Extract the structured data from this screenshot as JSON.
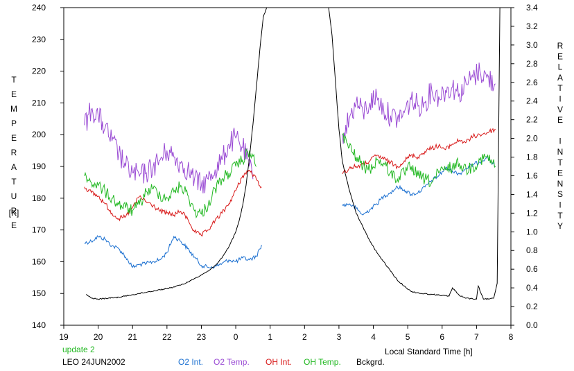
{
  "chart_data": {
    "type": "line",
    "xlabel": "Local Standard Time [h]",
    "ylabel_left": "TEMPERATURE",
    "ylabel_left_unit": "[K]",
    "ylabel_right": "RELATIVE INTENSITY",
    "x_ticks": [
      "19",
      "20",
      "21",
      "22",
      "23",
      "0",
      "1",
      "2",
      "3",
      "4",
      "5",
      "6",
      "7",
      "8"
    ],
    "xlim": [
      19,
      32
    ],
    "ylim_left": [
      140,
      240
    ],
    "ylim_right": [
      0.0,
      3.4
    ],
    "y_ticks_left": [
      "140",
      "150",
      "160",
      "170",
      "180",
      "190",
      "200",
      "210",
      "220",
      "230",
      "240"
    ],
    "y_ticks_right": [
      "0.0",
      "0.2",
      "0.4",
      "0.6",
      "0.8",
      "1.0",
      "1.2",
      "1.4",
      "1.6",
      "1.8",
      "2.0",
      "2.2",
      "2.4",
      "2.6",
      "2.8",
      "3.0",
      "3.2",
      "3.4"
    ],
    "update_note": "update 2",
    "station_label": "LEO 24JUN2002",
    "grid": false,
    "series": [
      {
        "name": "O2 Int.",
        "color": "#1a6fd0",
        "axis": "right",
        "x": [
          19.6,
          19.8,
          20.0,
          20.2,
          20.4,
          20.6,
          20.8,
          21.0,
          21.2,
          21.4,
          21.6,
          21.8,
          22.0,
          22.2,
          22.4,
          22.6,
          22.8,
          23.0,
          23.2,
          23.4,
          23.6,
          23.8,
          24.0,
          24.2,
          24.4,
          24.6,
          24.75,
          27.1,
          27.3,
          27.5,
          27.7,
          27.9,
          28.1,
          28.3,
          28.5,
          28.7,
          28.9,
          29.1,
          29.3,
          29.5,
          29.7,
          29.9,
          30.1,
          30.3,
          30.5,
          30.7,
          30.9,
          31.1,
          31.3,
          31.55
        ],
        "values": [
          0.88,
          0.9,
          0.95,
          0.92,
          0.85,
          0.82,
          0.73,
          0.62,
          0.65,
          0.66,
          0.68,
          0.7,
          0.78,
          0.95,
          0.9,
          0.82,
          0.73,
          0.64,
          0.62,
          0.63,
          0.66,
          0.7,
          0.68,
          0.72,
          0.7,
          0.74,
          0.86,
          1.28,
          1.3,
          1.25,
          1.18,
          1.24,
          1.3,
          1.38,
          1.42,
          1.48,
          1.45,
          1.4,
          1.42,
          1.48,
          1.55,
          1.6,
          1.68,
          1.65,
          1.62,
          1.68,
          1.72,
          1.75,
          1.8,
          1.7
        ]
      },
      {
        "name": "O2 Temp.",
        "color": "#9a4bd4",
        "axis": "left",
        "x": [
          19.6,
          19.8,
          20.0,
          20.2,
          20.4,
          20.6,
          20.8,
          21.0,
          21.2,
          21.4,
          21.6,
          21.8,
          22.0,
          22.2,
          22.4,
          22.6,
          22.8,
          23.0,
          23.2,
          23.4,
          23.6,
          23.8,
          24.0,
          24.2,
          24.4,
          24.5,
          27.1,
          27.3,
          27.5,
          27.7,
          27.9,
          28.1,
          28.3,
          28.5,
          28.7,
          28.9,
          29.1,
          29.3,
          29.5,
          29.7,
          29.9,
          30.1,
          30.3,
          30.5,
          30.7,
          30.9,
          31.1,
          31.3,
          31.55
        ],
        "values": [
          203,
          208,
          206,
          202,
          198,
          194,
          190,
          188,
          187,
          188,
          190,
          192,
          195,
          193,
          191,
          189,
          186,
          184,
          186,
          189,
          192,
          197,
          199,
          196,
          190,
          186,
          200,
          205,
          210,
          207,
          210,
          212,
          208,
          206,
          205,
          207,
          211,
          209,
          210,
          214,
          212,
          214,
          215,
          213,
          216,
          218,
          220,
          218,
          216
        ]
      },
      {
        "name": "OH Int.",
        "color": "#d81818",
        "axis": "right",
        "x": [
          19.6,
          19.8,
          20.0,
          20.2,
          20.4,
          20.6,
          20.8,
          21.0,
          21.2,
          21.4,
          21.6,
          21.8,
          22.0,
          22.2,
          22.4,
          22.6,
          22.8,
          23.0,
          23.2,
          23.4,
          23.6,
          23.8,
          24.0,
          24.2,
          24.4,
          24.6,
          24.75,
          27.1,
          27.3,
          27.5,
          27.7,
          27.9,
          28.1,
          28.3,
          28.5,
          28.7,
          28.9,
          29.1,
          29.3,
          29.5,
          29.7,
          29.9,
          30.1,
          30.3,
          30.5,
          30.7,
          30.9,
          31.1,
          31.3,
          31.55
        ],
        "values": [
          1.48,
          1.42,
          1.38,
          1.3,
          1.2,
          1.14,
          1.16,
          1.26,
          1.38,
          1.32,
          1.28,
          1.22,
          1.2,
          1.18,
          1.22,
          1.14,
          1.0,
          0.96,
          1.02,
          1.12,
          1.2,
          1.3,
          1.44,
          1.6,
          1.66,
          1.56,
          1.48,
          1.62,
          1.68,
          1.7,
          1.72,
          1.76,
          1.82,
          1.78,
          1.74,
          1.7,
          1.76,
          1.82,
          1.8,
          1.86,
          1.9,
          1.92,
          1.88,
          1.94,
          1.98,
          1.96,
          2.02,
          2.04,
          2.06,
          2.1
        ]
      },
      {
        "name": "OH Temp.",
        "color": "#22b822",
        "axis": "left",
        "x": [
          19.6,
          19.8,
          20.0,
          20.2,
          20.4,
          20.6,
          20.8,
          21.0,
          21.2,
          21.4,
          21.6,
          21.8,
          22.0,
          22.2,
          22.4,
          22.6,
          22.8,
          23.0,
          23.2,
          23.4,
          23.6,
          23.8,
          24.0,
          24.2,
          24.4,
          24.6,
          27.1,
          27.3,
          27.5,
          27.7,
          27.9,
          28.1,
          28.3,
          28.5,
          28.7,
          28.9,
          29.1,
          29.3,
          29.5,
          29.7,
          29.9,
          30.1,
          30.3,
          30.5,
          30.7,
          30.9,
          31.1,
          31.3,
          31.55
        ],
        "values": [
          187,
          185,
          184,
          182,
          180,
          178,
          177,
          176,
          178,
          182,
          183,
          181,
          180,
          182,
          184,
          181,
          176,
          175,
          178,
          183,
          186,
          188,
          190,
          192,
          195,
          190,
          200,
          196,
          193,
          190,
          189,
          192,
          191,
          188,
          186,
          188,
          190,
          187,
          186,
          185,
          188,
          189,
          190,
          191,
          189,
          190,
          192,
          193,
          190
        ]
      },
      {
        "name": "Bckgrd.",
        "color": "#000000",
        "axis": "right",
        "x": [
          19.65,
          19.8,
          20.0,
          20.3,
          20.6,
          20.9,
          21.2,
          21.5,
          21.8,
          22.1,
          22.4,
          22.6,
          22.8,
          23.0,
          23.2,
          23.4,
          23.6,
          23.8,
          24.0,
          24.1,
          24.2,
          24.3,
          24.4,
          24.5,
          24.6,
          24.7,
          24.8,
          24.9,
          26.7,
          26.8,
          26.9,
          27.0,
          27.1,
          27.3,
          27.5,
          27.7,
          27.9,
          28.1,
          28.3,
          28.5,
          28.7,
          28.9,
          29.1,
          29.4,
          29.7,
          30.0,
          30.2,
          30.3,
          30.5,
          30.7,
          30.9,
          31.0,
          31.05,
          31.2,
          31.35,
          31.5,
          31.6,
          31.68
        ],
        "values": [
          0.33,
          0.29,
          0.28,
          0.29,
          0.3,
          0.32,
          0.34,
          0.36,
          0.38,
          0.4,
          0.43,
          0.46,
          0.5,
          0.54,
          0.58,
          0.64,
          0.72,
          0.84,
          1.0,
          1.12,
          1.28,
          1.5,
          1.8,
          2.15,
          2.55,
          2.95,
          3.3,
          3.4,
          3.4,
          3.1,
          2.6,
          2.1,
          1.75,
          1.45,
          1.2,
          1.05,
          0.9,
          0.78,
          0.68,
          0.58,
          0.48,
          0.42,
          0.36,
          0.34,
          0.33,
          0.32,
          0.31,
          0.4,
          0.32,
          0.29,
          0.28,
          0.28,
          0.42,
          0.28,
          0.28,
          0.29,
          0.45,
          3.4
        ]
      }
    ]
  }
}
